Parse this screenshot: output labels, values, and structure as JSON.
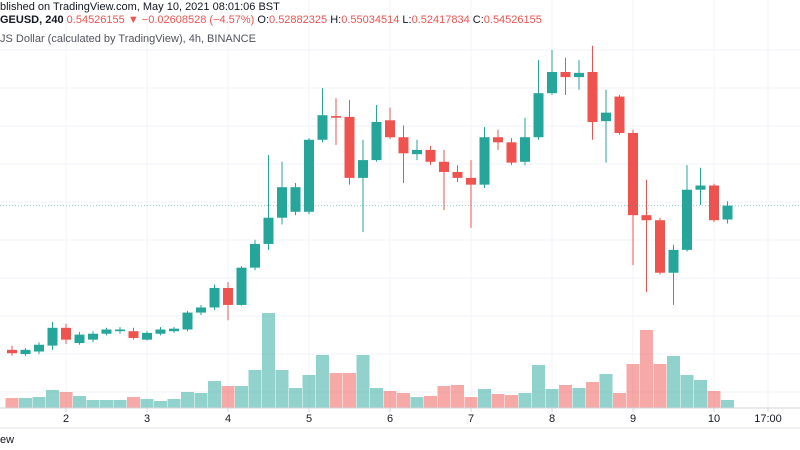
{
  "header": {
    "published": "blished on TradingView.com, May 10, 2021 08:01:06 BST",
    "symbol": "GEUSD, 240",
    "last": "0.54526155",
    "change": "▼ −0.02608528 (−4.57%)",
    "ohlc": [
      {
        "label": "O:",
        "value": "0.52882325"
      },
      {
        "label": "H:",
        "value": "0.55034514"
      },
      {
        "label": "L:",
        "value": "0.52417834"
      },
      {
        "label": "C:",
        "value": "0.54526155"
      }
    ],
    "description": "JS Dollar (calculated by TradingView), 4h, BINANCE"
  },
  "footer": "ew",
  "chart_data": {
    "type": "candlestick",
    "up_color": "#26a69a",
    "down_color": "#ef5350",
    "ylim": [
      0.363,
      0.788
    ],
    "vlim": [
      0,
      100
    ],
    "xticks": [
      {
        "value": 4,
        "label": "2"
      },
      {
        "value": 10,
        "label": "3"
      },
      {
        "value": 16,
        "label": "4"
      },
      {
        "value": 22,
        "label": "5"
      },
      {
        "value": 28,
        "label": "6"
      },
      {
        "value": 34,
        "label": "7"
      },
      {
        "value": 40,
        "label": "8"
      },
      {
        "value": 46,
        "label": "9"
      },
      {
        "value": 52,
        "label": "10"
      },
      {
        "value": 56,
        "label": "17:00"
      }
    ],
    "open": [
      0.375,
      0.37,
      0.373,
      0.38,
      0.401,
      0.383,
      0.387,
      0.394,
      0.397,
      0.397,
      0.387,
      0.394,
      0.397,
      0.399,
      0.419,
      0.425,
      0.448,
      0.428,
      0.472,
      0.5,
      0.531,
      0.538,
      0.538,
      0.623,
      0.651,
      0.65,
      0.578,
      0.599,
      0.646,
      0.626,
      0.606,
      0.611,
      0.597,
      0.585,
      0.578,
      0.57,
      0.626,
      0.62,
      0.597,
      0.626,
      0.678,
      0.703,
      0.697,
      0.703,
      0.645,
      0.674,
      0.631,
      0.534,
      0.528,
      0.466,
      0.493,
      0.564,
      0.569,
      0.52882325
    ],
    "high": [
      0.38,
      0.377,
      0.384,
      0.408,
      0.406,
      0.396,
      0.397,
      0.401,
      0.402,
      0.401,
      0.397,
      0.402,
      0.402,
      0.421,
      0.428,
      0.452,
      0.455,
      0.474,
      0.505,
      0.605,
      0.597,
      0.572,
      0.625,
      0.684,
      0.672,
      0.67,
      0.623,
      0.664,
      0.661,
      0.64,
      0.623,
      0.616,
      0.611,
      0.593,
      0.599,
      0.638,
      0.635,
      0.625,
      0.649,
      0.717,
      0.729,
      0.72,
      0.717,
      0.734,
      0.682,
      0.676,
      0.635,
      0.576,
      0.531,
      0.499,
      0.593,
      0.59,
      0.571,
      0.55034514
    ],
    "low": [
      0.368,
      0.368,
      0.37,
      0.375,
      0.382,
      0.381,
      0.384,
      0.392,
      0.394,
      0.387,
      0.386,
      0.392,
      0.395,
      0.397,
      0.416,
      0.422,
      0.41,
      0.427,
      0.469,
      0.493,
      0.523,
      0.534,
      0.535,
      0.62,
      0.617,
      0.57,
      0.514,
      0.597,
      0.624,
      0.572,
      0.599,
      0.593,
      0.54,
      0.573,
      0.519,
      0.566,
      0.611,
      0.593,
      0.593,
      0.623,
      0.676,
      0.676,
      0.682,
      0.623,
      0.596,
      0.629,
      0.475,
      0.443,
      0.464,
      0.428,
      0.491,
      0.546,
      0.526,
      0.52417834
    ],
    "close": [
      0.371,
      0.375,
      0.381,
      0.401,
      0.387,
      0.393,
      0.394,
      0.399,
      0.399,
      0.389,
      0.395,
      0.399,
      0.4,
      0.419,
      0.425,
      0.448,
      0.428,
      0.472,
      0.5,
      0.531,
      0.567,
      0.567,
      0.623,
      0.652,
      0.649,
      0.578,
      0.599,
      0.644,
      0.626,
      0.607,
      0.611,
      0.597,
      0.585,
      0.578,
      0.57,
      0.626,
      0.62,
      0.596,
      0.626,
      0.678,
      0.703,
      0.697,
      0.702,
      0.644,
      0.655,
      0.631,
      0.534,
      0.528,
      0.466,
      0.493,
      0.564,
      0.569,
      0.528,
      0.54526155
    ],
    "volume": [
      10,
      10,
      11,
      18,
      16,
      12,
      8,
      8,
      8,
      11,
      9,
      7,
      9,
      16,
      15,
      27,
      22,
      22,
      38,
      95,
      38,
      20,
      33,
      53,
      35,
      35,
      53,
      20,
      17,
      15,
      11,
      12,
      22,
      23,
      11,
      19,
      14,
      13,
      15,
      43,
      19,
      23,
      20,
      26,
      34,
      15,
      44,
      78,
      44,
      52,
      33,
      28,
      17,
      8
    ]
  }
}
